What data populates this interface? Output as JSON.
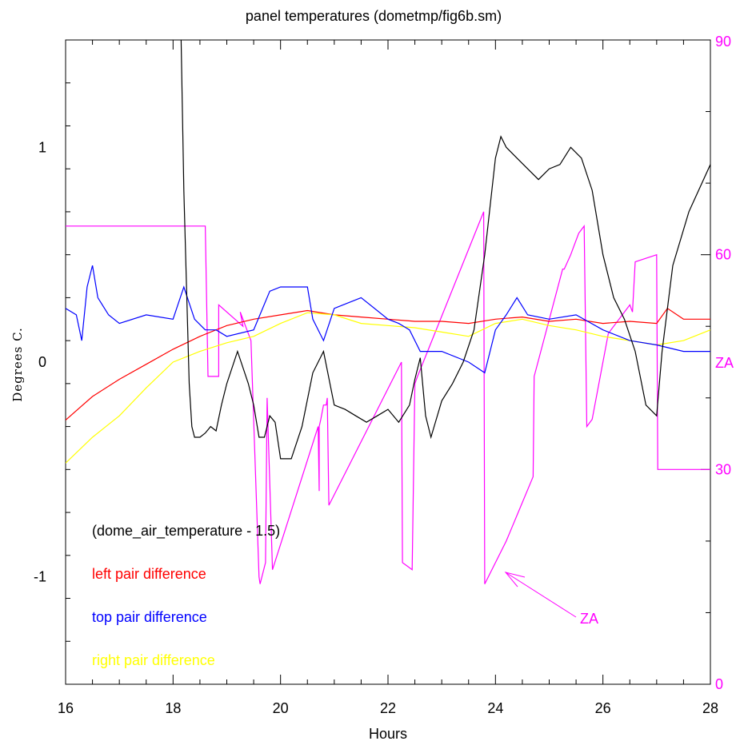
{
  "chart_data": {
    "type": "line",
    "title": "panel temperatures (dometmp/fig6b.sm)",
    "xlabel": "Hours",
    "ylabel": "Degrees C.",
    "y2label": "ZA",
    "xlim": [
      16,
      28
    ],
    "ylim": [
      -1.5,
      1.5
    ],
    "y2lim": [
      0,
      90
    ],
    "x_ticks": [
      "16",
      "18",
      "20",
      "22",
      "24",
      "26",
      "28"
    ],
    "y_ticks": [
      "-1",
      "0",
      "1"
    ],
    "y2_ticks": [
      "0",
      "30",
      "60",
      "90"
    ],
    "grid": false,
    "legend_position": "lower-left",
    "annotation": "ZA",
    "series": [
      {
        "name": "(dome_air_temperature - 1.5)",
        "color": "#000000",
        "axis": "left",
        "x": [
          18.15,
          18.2,
          18.3,
          18.35,
          18.4,
          18.5,
          18.6,
          18.7,
          18.8,
          18.9,
          19.0,
          19.2,
          19.4,
          19.5,
          19.6,
          19.7,
          19.8,
          19.9,
          20.0,
          20.2,
          20.4,
          20.6,
          20.8,
          21.0,
          21.2,
          21.4,
          21.6,
          21.8,
          22.0,
          22.2,
          22.4,
          22.5,
          22.6,
          22.7,
          22.8,
          23.0,
          23.2,
          23.4,
          23.6,
          23.8,
          24.0,
          24.1,
          24.2,
          24.4,
          24.6,
          24.8,
          25.0,
          25.2,
          25.4,
          25.6,
          25.8,
          26.0,
          26.2,
          26.4,
          26.6,
          26.8,
          27.0,
          27.1,
          27.3,
          27.6,
          28.0
        ],
        "y": [
          1.5,
          0.8,
          -0.1,
          -0.3,
          -0.35,
          -0.35,
          -0.33,
          -0.3,
          -0.32,
          -0.2,
          -0.1,
          0.05,
          -0.1,
          -0.2,
          -0.35,
          -0.35,
          -0.25,
          -0.28,
          -0.45,
          -0.45,
          -0.3,
          -0.05,
          0.05,
          -0.2,
          -0.22,
          -0.25,
          -0.28,
          -0.25,
          -0.22,
          -0.28,
          -0.2,
          -0.08,
          0.02,
          -0.25,
          -0.35,
          -0.18,
          -0.1,
          0.0,
          0.15,
          0.5,
          0.95,
          1.05,
          1.0,
          0.95,
          0.9,
          0.85,
          0.9,
          0.92,
          1.0,
          0.95,
          0.8,
          0.5,
          0.3,
          0.2,
          0.05,
          -0.2,
          -0.25,
          0.05,
          0.45,
          0.7,
          0.92
        ]
      },
      {
        "name": "left pair difference",
        "color": "#ff0000",
        "axis": "left",
        "x": [
          16.0,
          16.5,
          17.0,
          17.5,
          18.0,
          18.5,
          19.0,
          19.5,
          20.0,
          20.5,
          21.0,
          21.5,
          22.0,
          22.5,
          23.0,
          23.5,
          24.0,
          24.5,
          25.0,
          25.5,
          26.0,
          26.5,
          27.0,
          27.2,
          27.5,
          28.0
        ],
        "y": [
          -0.27,
          -0.16,
          -0.08,
          -0.01,
          0.06,
          0.12,
          0.17,
          0.2,
          0.22,
          0.24,
          0.22,
          0.21,
          0.2,
          0.19,
          0.19,
          0.18,
          0.2,
          0.21,
          0.19,
          0.2,
          0.18,
          0.19,
          0.18,
          0.25,
          0.2,
          0.2
        ]
      },
      {
        "name": "top pair difference",
        "color": "#0000ff",
        "axis": "left",
        "x": [
          16.0,
          16.2,
          16.3,
          16.4,
          16.5,
          16.6,
          16.8,
          17.0,
          17.5,
          18.0,
          18.2,
          18.4,
          18.6,
          18.8,
          19.0,
          19.5,
          19.8,
          20.0,
          20.5,
          20.6,
          20.8,
          21.0,
          21.5,
          22.0,
          22.2,
          22.4,
          22.6,
          23.0,
          23.5,
          23.8,
          24.0,
          24.2,
          24.4,
          24.6,
          25.0,
          25.5,
          26.0,
          26.5,
          27.0,
          27.5,
          28.0
        ],
        "y": [
          0.25,
          0.22,
          0.1,
          0.35,
          0.45,
          0.3,
          0.22,
          0.18,
          0.22,
          0.2,
          0.35,
          0.2,
          0.15,
          0.15,
          0.12,
          0.15,
          0.33,
          0.35,
          0.35,
          0.2,
          0.1,
          0.25,
          0.3,
          0.2,
          0.18,
          0.15,
          0.05,
          0.05,
          0.0,
          -0.05,
          0.15,
          0.22,
          0.3,
          0.22,
          0.2,
          0.22,
          0.15,
          0.1,
          0.08,
          0.05,
          0.05
        ]
      },
      {
        "name": "right pair difference",
        "color": "#ffff00",
        "axis": "left",
        "x": [
          16.0,
          16.5,
          17.0,
          17.5,
          18.0,
          18.5,
          19.0,
          19.5,
          20.0,
          20.5,
          21.0,
          21.5,
          22.0,
          22.5,
          23.0,
          23.5,
          24.0,
          24.5,
          25.0,
          25.5,
          26.0,
          26.5,
          27.0,
          27.5,
          28.0
        ],
        "y": [
          -0.47,
          -0.35,
          -0.25,
          -0.12,
          0.0,
          0.05,
          0.09,
          0.12,
          0.18,
          0.23,
          0.22,
          0.18,
          0.17,
          0.16,
          0.14,
          0.12,
          0.18,
          0.2,
          0.17,
          0.15,
          0.12,
          0.1,
          0.08,
          0.1,
          0.15
        ]
      },
      {
        "name": "ZA",
        "color": "#ff00ff",
        "axis": "right",
        "x": [
          16.0,
          18.6,
          18.65,
          18.85,
          18.85,
          19.3,
          19.25,
          19.45,
          19.6,
          19.62,
          19.72,
          19.75,
          19.85,
          20.7,
          20.72,
          20.72,
          20.75,
          20.8,
          20.85,
          20.87,
          20.9,
          22.25,
          22.27,
          22.45,
          22.5,
          22.55,
          23.78,
          23.8,
          24.2,
          24.7,
          24.72,
          25.25,
          25.28,
          25.4,
          25.45,
          25.55,
          25.65,
          25.7,
          25.8,
          26.1,
          26.2,
          26.5,
          26.55,
          26.6,
          27.0,
          27.02,
          28.0
        ],
        "y": [
          64,
          64,
          43,
          43,
          53,
          50,
          52,
          48,
          15,
          14,
          17,
          40,
          16,
          36,
          27,
          36,
          37,
          39,
          39,
          40,
          25,
          45,
          17,
          16,
          42,
          43,
          66,
          14,
          20,
          29,
          43,
          58,
          58,
          60,
          61,
          63,
          64,
          36,
          37,
          49,
          50,
          53,
          52,
          59,
          60,
          30,
          30
        ]
      }
    ]
  }
}
